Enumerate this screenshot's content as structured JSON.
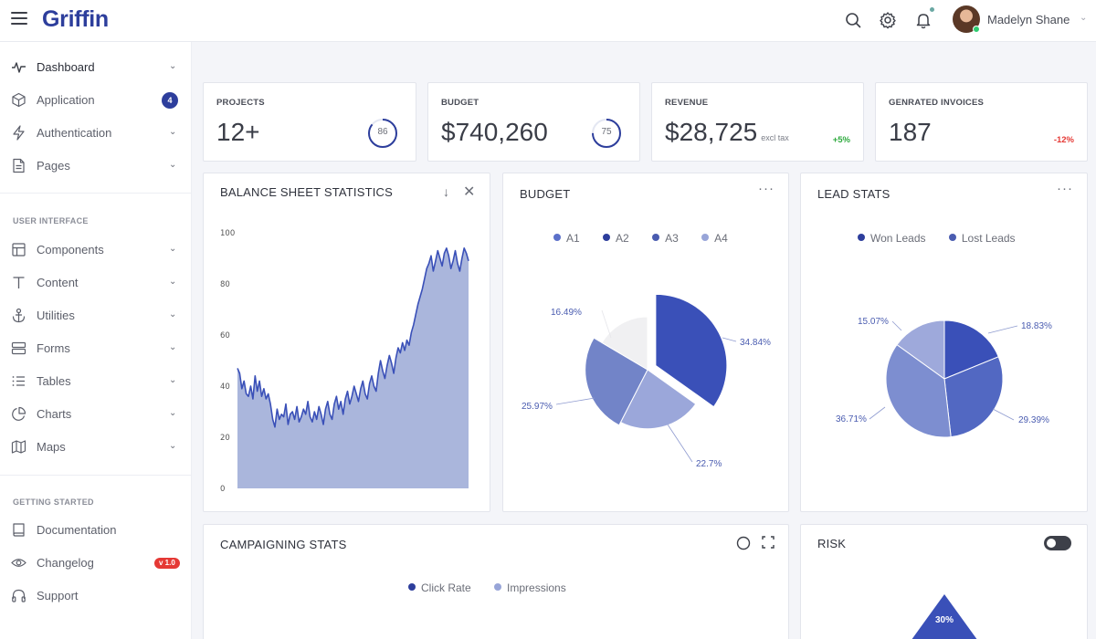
{
  "header": {
    "logo": "Griffin",
    "user_name": "Madelyn Shane"
  },
  "sidebar": {
    "items_top": [
      {
        "label": "Dashboard",
        "icon": "activity-icon"
      },
      {
        "label": "Application",
        "icon": "box-icon",
        "badge": "4"
      },
      {
        "label": "Authentication",
        "icon": "zap-icon"
      },
      {
        "label": "Pages",
        "icon": "file-icon"
      }
    ],
    "section_ui": "USER INTERFACE",
    "items_ui": [
      {
        "label": "Components",
        "icon": "layout-icon"
      },
      {
        "label": "Content",
        "icon": "type-icon"
      },
      {
        "label": "Utilities",
        "icon": "anchor-icon"
      },
      {
        "label": "Forms",
        "icon": "server-icon"
      },
      {
        "label": "Tables",
        "icon": "list-icon"
      },
      {
        "label": "Charts",
        "icon": "pie-chart-icon"
      },
      {
        "label": "Maps",
        "icon": "map-icon"
      }
    ],
    "section_start": "GETTING STARTED",
    "items_start": [
      {
        "label": "Documentation",
        "icon": "book-icon"
      },
      {
        "label": "Changelog",
        "icon": "eye-icon",
        "badge": "v 1.0"
      },
      {
        "label": "Support",
        "icon": "headphones-icon"
      }
    ]
  },
  "stats": [
    {
      "label": "PROJECTS",
      "value": "12+",
      "ring": "86"
    },
    {
      "label": "BUDGET",
      "value": "$740,260",
      "ring": "75"
    },
    {
      "label": "REVENUE",
      "value": "$28,725",
      "sub": "excl tax",
      "change": "+5%"
    },
    {
      "label": "GENRATED INVOICES",
      "value": "187",
      "change": "-12%"
    }
  ],
  "colors": {
    "brand": "#2d3e9c",
    "positive": "#2eaa3e",
    "negative": "#e53935",
    "area_fill": "#aab6dc",
    "area_line": "#3a50b8"
  },
  "balance": {
    "title": "BALANCE SHEET STATISTICS"
  },
  "budget": {
    "title": "BUDGET"
  },
  "lead": {
    "title": "LEAD STATS"
  },
  "campaign": {
    "title": "CAMPAIGNING STATS",
    "legend": [
      "Click Rate",
      "Impressions"
    ]
  },
  "risk": {
    "title": "RISK",
    "toggle_on": true
  },
  "chart_data": [
    {
      "type": "area",
      "title": "BALANCE SHEET STATISTICS",
      "ylim": [
        0,
        100
      ],
      "y_ticks": [
        0,
        20,
        40,
        60,
        80,
        100
      ],
      "grid": false,
      "values": [
        47,
        45,
        39,
        42,
        37,
        36,
        40,
        35,
        44,
        38,
        42,
        36,
        39,
        35,
        37,
        33,
        27,
        24,
        31,
        27,
        29,
        28,
        33,
        25,
        29,
        30,
        27,
        32,
        26,
        28,
        31,
        29,
        34,
        28,
        26,
        30,
        27,
        32,
        29,
        25,
        31,
        34,
        29,
        27,
        33,
        36,
        31,
        34,
        29,
        35,
        38,
        33,
        36,
        40,
        37,
        34,
        39,
        42,
        37,
        35,
        41,
        44,
        40,
        38,
        45,
        50,
        46,
        43,
        48,
        52,
        49,
        45,
        51,
        55,
        53,
        57,
        54,
        58,
        56,
        61,
        64,
        68,
        72,
        75,
        78,
        82,
        86,
        88,
        91,
        85,
        89,
        93,
        90,
        87,
        92,
        94,
        91,
        86,
        89,
        93,
        88,
        85,
        90,
        94,
        92,
        89
      ]
    },
    {
      "type": "pie",
      "title": "BUDGET",
      "legend": [
        "A1",
        "A2",
        "A3",
        "A4"
      ],
      "labels": [
        "34.84%",
        "22.7%",
        "25.97%",
        "16.49%"
      ],
      "values": [
        34.84,
        22.7,
        25.97,
        16.49
      ]
    },
    {
      "type": "pie",
      "title": "LEAD STATS",
      "legend": [
        "Won Leads",
        "Lost Leads"
      ],
      "labels": [
        "18.83%",
        "29.39%",
        "36.71%",
        "15.07%"
      ],
      "values": [
        18.83,
        29.39,
        36.71,
        15.07
      ]
    },
    {
      "type": "bar",
      "title": "RISK",
      "labels": [
        "30%"
      ],
      "values": [
        30
      ]
    }
  ]
}
